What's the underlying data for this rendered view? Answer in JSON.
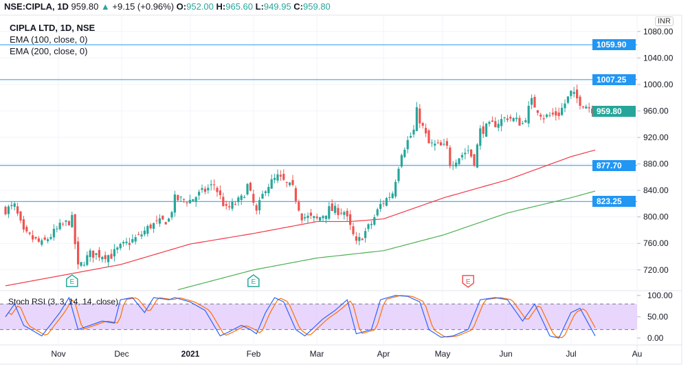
{
  "header": {
    "symbol": "NSE:CIPLA, 1D",
    "price": "959.80",
    "change": "+9.15 (+0.96%)",
    "o_label": "O:",
    "o": "952.00",
    "h_label": "H:",
    "h": "965.60",
    "l_label": "L:",
    "l": "949.95",
    "c_label": "C:",
    "c": "959.80"
  },
  "legend": {
    "title": "CIPLA LTD, 1D, NSE",
    "ema100": "EMA (100, close, 0)",
    "ema200": "EMA (200, close, 0)",
    "stoch": "Stoch RSI (3, 3, 14, 14, close)"
  },
  "currency": "INR",
  "colors": {
    "up": "#26a69a",
    "down": "#ef5350",
    "ema100": "#f23645",
    "ema200": "#4caf50",
    "hline": "#2196f3",
    "stochK": "#2962ff",
    "stochD": "#ff6d00",
    "band": "#e1c8fb"
  },
  "chart_data": {
    "type": "candlestick",
    "price_axis": {
      "ticks": [
        "1080.00",
        "1040.00",
        "1000.00",
        "960.00",
        "920.00",
        "880.00",
        "840.00",
        "800.00",
        "760.00",
        "720.00"
      ],
      "range": [
        700,
        1090
      ]
    },
    "time_axis": [
      "Nov",
      "Dec",
      "2021",
      "Feb",
      "Mar",
      "Apr",
      "May",
      "Jun",
      "Jul",
      "Au"
    ],
    "horizontal_lines": [
      "1059.90",
      "1007.25",
      "877.70",
      "823.25"
    ],
    "last_price": "959.80",
    "close_anchors": [
      [
        0,
        811
      ],
      [
        3,
        816
      ],
      [
        6,
        775
      ],
      [
        12,
        759
      ],
      [
        18,
        785
      ],
      [
        22,
        796
      ],
      [
        24,
        723
      ],
      [
        28,
        744
      ],
      [
        35,
        742
      ],
      [
        38,
        754
      ],
      [
        44,
        770
      ],
      [
        48,
        787
      ],
      [
        54,
        796
      ],
      [
        56,
        827
      ],
      [
        61,
        825
      ],
      [
        69,
        849
      ],
      [
        73,
        811
      ],
      [
        78,
        827
      ],
      [
        80,
        847
      ],
      [
        83,
        806
      ],
      [
        86,
        845
      ],
      [
        90,
        860
      ],
      [
        95,
        842
      ],
      [
        98,
        801
      ],
      [
        103,
        796
      ],
      [
        107,
        811
      ],
      [
        112,
        808
      ],
      [
        116,
        759
      ],
      [
        121,
        790
      ],
      [
        124,
        818
      ],
      [
        128,
        837
      ],
      [
        131,
        899
      ],
      [
        135,
        930
      ],
      [
        136,
        959
      ],
      [
        140,
        910
      ],
      [
        146,
        904
      ],
      [
        147,
        881
      ],
      [
        153,
        901
      ],
      [
        155,
        884
      ],
      [
        157,
        930
      ],
      [
        162,
        941
      ],
      [
        166,
        951
      ],
      [
        171,
        941
      ],
      [
        174,
        974
      ],
      [
        178,
        951
      ],
      [
        183,
        956
      ],
      [
        187,
        987
      ],
      [
        190,
        974
      ],
      [
        195,
        959.8
      ]
    ],
    "ema100": [
      [
        0,
        696
      ],
      [
        38,
        728
      ],
      [
        61,
        759
      ],
      [
        82,
        775
      ],
      [
        103,
        793
      ],
      [
        114,
        793
      ],
      [
        125,
        797
      ],
      [
        145,
        829
      ],
      [
        166,
        856
      ],
      [
        187,
        891
      ],
      [
        195,
        901
      ]
    ],
    "ema200": [
      [
        57,
        690
      ],
      [
        82,
        720
      ],
      [
        103,
        738
      ],
      [
        125,
        749
      ],
      [
        145,
        773
      ],
      [
        166,
        806
      ],
      [
        187,
        829
      ],
      [
        195,
        839
      ]
    ],
    "stoch_axis": {
      "ticks": [
        "100.00",
        "50.00",
        "0.00"
      ],
      "bands": [
        20,
        80
      ]
    },
    "stoch_k": [
      [
        0,
        50
      ],
      [
        3,
        80
      ],
      [
        6,
        30
      ],
      [
        12,
        5
      ],
      [
        18,
        60
      ],
      [
        21,
        95
      ],
      [
        24,
        20
      ],
      [
        28,
        30
      ],
      [
        32,
        40
      ],
      [
        36,
        35
      ],
      [
        38,
        90
      ],
      [
        42,
        95
      ],
      [
        46,
        60
      ],
      [
        49,
        95
      ],
      [
        54,
        90
      ],
      [
        56,
        95
      ],
      [
        61,
        85
      ],
      [
        66,
        65
      ],
      [
        71,
        5
      ],
      [
        74,
        15
      ],
      [
        78,
        30
      ],
      [
        81,
        20
      ],
      [
        83,
        10
      ],
      [
        86,
        60
      ],
      [
        89,
        95
      ],
      [
        92,
        85
      ],
      [
        96,
        20
      ],
      [
        99,
        5
      ],
      [
        105,
        45
      ],
      [
        109,
        65
      ],
      [
        113,
        90
      ],
      [
        116,
        10
      ],
      [
        121,
        20
      ],
      [
        124,
        90
      ],
      [
        129,
        100
      ],
      [
        133,
        98
      ],
      [
        137,
        85
      ],
      [
        140,
        20
      ],
      [
        144,
        2
      ],
      [
        148,
        5
      ],
      [
        153,
        20
      ],
      [
        157,
        90
      ],
      [
        162,
        95
      ],
      [
        166,
        90
      ],
      [
        171,
        40
      ],
      [
        175,
        80
      ],
      [
        180,
        5
      ],
      [
        183,
        0
      ],
      [
        187,
        60
      ],
      [
        190,
        70
      ],
      [
        195,
        5
      ]
    ],
    "earnings": [
      {
        "i": 22,
        "label": "E",
        "kind": "past"
      },
      {
        "i": 82,
        "label": "E",
        "kind": "past"
      },
      {
        "i": 153,
        "label": "E",
        "kind": "upcoming"
      }
    ]
  }
}
